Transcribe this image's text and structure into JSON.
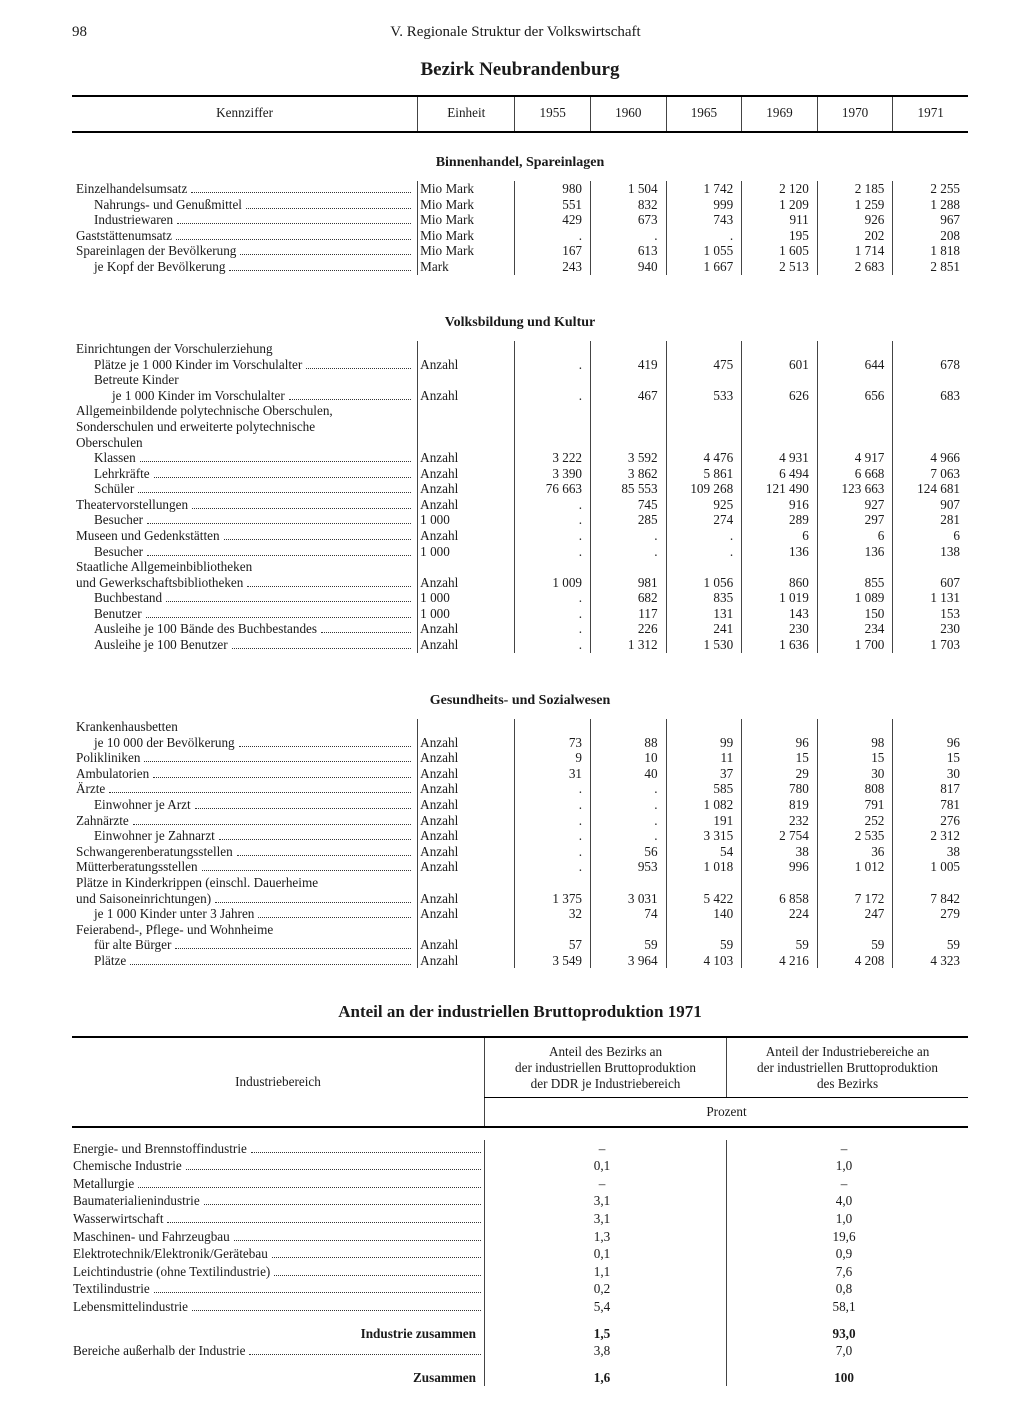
{
  "folio": "98",
  "chapter": "V. Regionale Struktur der Volkswirtschaft",
  "title": "Bezirk Neubrandenburg",
  "head": {
    "kennziffer": "Kennziffer",
    "einheit": "Einheit",
    "years": [
      "1955",
      "1960",
      "1965",
      "1969",
      "1970",
      "1971"
    ]
  },
  "sections": [
    {
      "caption": "Binnenhandel, Spareinlagen",
      "rows": [
        {
          "lbl": "Einzelhandelsumsatz",
          "ind": 0,
          "unit": "Mio Mark",
          "v": [
            "980",
            "1 504",
            "1 742",
            "2 120",
            "2 185",
            "2 255"
          ]
        },
        {
          "lbl": "Nahrungs- und Genußmittel",
          "ind": 1,
          "unit": "Mio Mark",
          "v": [
            "551",
            "832",
            "999",
            "1 209",
            "1 259",
            "1 288"
          ]
        },
        {
          "lbl": "Industriewaren",
          "ind": 1,
          "unit": "Mio Mark",
          "v": [
            "429",
            "673",
            "743",
            "911",
            "926",
            "967"
          ]
        },
        {
          "lbl": "Gaststättenumsatz",
          "ind": 0,
          "unit": "Mio Mark",
          "v": [
            ".",
            ".",
            ".",
            "195",
            "202",
            "208"
          ]
        },
        {
          "lbl": "Spareinlagen der Bevölkerung",
          "ind": 0,
          "unit": "Mio Mark",
          "v": [
            "167",
            "613",
            "1 055",
            "1 605",
            "1 714",
            "1 818"
          ]
        },
        {
          "lbl": "je Kopf der Bevölkerung",
          "ind": 1,
          "unit": "Mark",
          "v": [
            "243",
            "940",
            "1 667",
            "2 513",
            "2 683",
            "2 851"
          ]
        }
      ]
    },
    {
      "caption": "Volksbildung und Kultur",
      "rows": [
        {
          "lbl": "Einrichtungen der Vorschulerziehung",
          "ind": 0,
          "noDots": true,
          "unit": "",
          "v": [
            "",
            "",
            "",
            "",
            "",
            ""
          ]
        },
        {
          "lbl": "Plätze je 1 000 Kinder im Vorschulalter",
          "ind": 1,
          "unit": "Anzahl",
          "v": [
            ".",
            "419",
            "475",
            "601",
            "644",
            "678"
          ]
        },
        {
          "lbl": "Betreute Kinder",
          "ind": 1,
          "noDots": true,
          "unit": "",
          "v": [
            "",
            "",
            "",
            "",
            "",
            ""
          ]
        },
        {
          "lbl": "je 1 000 Kinder im Vorschulalter",
          "ind": 2,
          "unit": "Anzahl",
          "v": [
            ".",
            "467",
            "533",
            "626",
            "656",
            "683"
          ]
        },
        {
          "lbl": "Allgemeinbildende polytechnische Oberschulen,",
          "ind": 0,
          "noDots": true,
          "unit": "",
          "v": [
            "",
            "",
            "",
            "",
            "",
            ""
          ]
        },
        {
          "lbl": "Sonderschulen und erweiterte polytechnische",
          "ind": 0,
          "noDots": true,
          "unit": "",
          "v": [
            "",
            "",
            "",
            "",
            "",
            ""
          ]
        },
        {
          "lbl": "Oberschulen",
          "ind": 0,
          "noDots": true,
          "unit": "",
          "v": [
            "",
            "",
            "",
            "",
            "",
            ""
          ]
        },
        {
          "lbl": "Klassen",
          "ind": 1,
          "unit": "Anzahl",
          "v": [
            "3 222",
            "3 592",
            "4 476",
            "4 931",
            "4 917",
            "4 966"
          ]
        },
        {
          "lbl": "Lehrkräfte",
          "ind": 1,
          "unit": "Anzahl",
          "v": [
            "3 390",
            "3 862",
            "5 861",
            "6 494",
            "6 668",
            "7 063"
          ]
        },
        {
          "lbl": "Schüler",
          "ind": 1,
          "unit": "Anzahl",
          "v": [
            "76 663",
            "85 553",
            "109 268",
            "121 490",
            "123 663",
            "124 681"
          ]
        },
        {
          "lbl": "Theatervorstellungen",
          "ind": 0,
          "unit": "Anzahl",
          "v": [
            ".",
            "745",
            "925",
            "916",
            "927",
            "907"
          ]
        },
        {
          "lbl": "Besucher",
          "ind": 1,
          "unit": "1 000",
          "v": [
            ".",
            "285",
            "274",
            "289",
            "297",
            "281"
          ]
        },
        {
          "lbl": "Museen und Gedenkstätten",
          "ind": 0,
          "unit": "Anzahl",
          "v": [
            ".",
            ".",
            ".",
            "6",
            "6",
            "6"
          ]
        },
        {
          "lbl": "Besucher",
          "ind": 1,
          "unit": "1 000",
          "v": [
            ".",
            ".",
            ".",
            "136",
            "136",
            "138"
          ]
        },
        {
          "lbl": "Staatliche Allgemeinbibliotheken",
          "ind": 0,
          "noDots": true,
          "unit": "",
          "v": [
            "",
            "",
            "",
            "",
            "",
            ""
          ]
        },
        {
          "lbl": "und Gewerkschaftsbibliotheken",
          "ind": 0,
          "unit": "Anzahl",
          "v": [
            "1 009",
            "981",
            "1 056",
            "860",
            "855",
            "607"
          ]
        },
        {
          "lbl": "Buchbestand",
          "ind": 1,
          "unit": "1 000",
          "v": [
            ".",
            "682",
            "835",
            "1 019",
            "1 089",
            "1 131"
          ]
        },
        {
          "lbl": "Benutzer",
          "ind": 1,
          "unit": "1 000",
          "v": [
            ".",
            "117",
            "131",
            "143",
            "150",
            "153"
          ]
        },
        {
          "lbl": "Ausleihe je 100 Bände des Buchbestandes",
          "ind": 1,
          "unit": "Anzahl",
          "v": [
            ".",
            "226",
            "241",
            "230",
            "234",
            "230"
          ]
        },
        {
          "lbl": "Ausleihe je 100 Benutzer",
          "ind": 1,
          "unit": "Anzahl",
          "v": [
            ".",
            "1 312",
            "1 530",
            "1 636",
            "1 700",
            "1 703"
          ]
        }
      ]
    },
    {
      "caption": "Gesundheits- und Sozialwesen",
      "rows": [
        {
          "lbl": "Krankenhausbetten",
          "ind": 0,
          "noDots": true,
          "unit": "",
          "v": [
            "",
            "",
            "",
            "",
            "",
            ""
          ]
        },
        {
          "lbl": "je 10 000 der Bevölkerung",
          "ind": 1,
          "unit": "Anzahl",
          "v": [
            "73",
            "88",
            "99",
            "96",
            "98",
            "96"
          ]
        },
        {
          "lbl": "Polikliniken",
          "ind": 0,
          "unit": "Anzahl",
          "v": [
            "9",
            "10",
            "11",
            "15",
            "15",
            "15"
          ]
        },
        {
          "lbl": "Ambulatorien",
          "ind": 0,
          "unit": "Anzahl",
          "v": [
            "31",
            "40",
            "37",
            "29",
            "30",
            "30"
          ]
        },
        {
          "lbl": "Ärzte",
          "ind": 0,
          "unit": "Anzahl",
          "v": [
            ".",
            ".",
            "585",
            "780",
            "808",
            "817"
          ]
        },
        {
          "lbl": "Einwohner je Arzt",
          "ind": 1,
          "unit": "Anzahl",
          "v": [
            ".",
            ".",
            "1 082",
            "819",
            "791",
            "781"
          ]
        },
        {
          "lbl": "Zahnärzte",
          "ind": 0,
          "unit": "Anzahl",
          "v": [
            ".",
            ".",
            "191",
            "232",
            "252",
            "276"
          ]
        },
        {
          "lbl": "Einwohner je Zahnarzt",
          "ind": 1,
          "unit": "Anzahl",
          "v": [
            ".",
            ".",
            "3 315",
            "2 754",
            "2 535",
            "2 312"
          ]
        },
        {
          "lbl": "Schwangerenberatungsstellen",
          "ind": 0,
          "unit": "Anzahl",
          "v": [
            ".",
            "56",
            "54",
            "38",
            "36",
            "38"
          ]
        },
        {
          "lbl": "Mütterberatungsstellen",
          "ind": 0,
          "unit": "Anzahl",
          "v": [
            ".",
            "953",
            "1 018",
            "996",
            "1 012",
            "1 005"
          ]
        },
        {
          "lbl": "Plätze in Kinderkrippen (einschl. Dauerheime",
          "ind": 0,
          "noDots": true,
          "unit": "",
          "v": [
            "",
            "",
            "",
            "",
            "",
            ""
          ]
        },
        {
          "lbl": "und Saisoneinrichtungen)",
          "ind": 0,
          "unit": "Anzahl",
          "v": [
            "1 375",
            "3 031",
            "5 422",
            "6 858",
            "7 172",
            "7 842"
          ]
        },
        {
          "lbl": "je 1 000 Kinder unter 3 Jahren",
          "ind": 1,
          "unit": "Anzahl",
          "v": [
            "32",
            "74",
            "140",
            "224",
            "247",
            "279"
          ]
        },
        {
          "lbl": "Feierabend-, Pflege- und Wohnheime",
          "ind": 0,
          "noDots": true,
          "unit": "",
          "v": [
            "",
            "",
            "",
            "",
            "",
            ""
          ]
        },
        {
          "lbl": "für alte Bürger",
          "ind": 1,
          "unit": "Anzahl",
          "v": [
            "57",
            "59",
            "59",
            "59",
            "59",
            "59"
          ]
        },
        {
          "lbl": "Plätze",
          "ind": 1,
          "unit": "Anzahl",
          "v": [
            "3 549",
            "3 964",
            "4 103",
            "4 216",
            "4 208",
            "4 323"
          ]
        }
      ]
    }
  ],
  "subTitle": "Anteil an der industriellen Bruttoproduktion 1971",
  "shareHead": {
    "ind": "Industriebereich",
    "c1": "Anteil des Bezirks an\nder industriellen Bruttoproduktion\nder DDR je Industriebereich",
    "c2": "Anteil der Industriebereiche an\nder industriellen Bruttoproduktion\ndes Bezirks",
    "unit": "Prozent"
  },
  "shareRows": [
    {
      "lbl": "Energie- und Brennstoffindustrie",
      "a": "–",
      "b": "–"
    },
    {
      "lbl": "Chemische Industrie",
      "a": "0,1",
      "b": "1,0"
    },
    {
      "lbl": "Metallurgie",
      "a": "–",
      "b": "–"
    },
    {
      "lbl": "Baumaterialienindustrie",
      "a": "3,1",
      "b": "4,0"
    },
    {
      "lbl": "Wasserwirtschaft",
      "a": "3,1",
      "b": "1,0"
    },
    {
      "lbl": "Maschinen- und Fahrzeugbau",
      "a": "1,3",
      "b": "19,6"
    },
    {
      "lbl": "Elektrotechnik/Elektronik/Gerätebau",
      "a": "0,1",
      "b": "0,9"
    },
    {
      "lbl": "Leichtindustrie (ohne Textilindustrie)",
      "a": "1,1",
      "b": "7,6"
    },
    {
      "lbl": "Textilindustrie",
      "a": "0,2",
      "b": "0,8"
    },
    {
      "lbl": "Lebensmittelindustrie",
      "a": "5,4",
      "b": "58,1"
    }
  ],
  "shareTotals": [
    {
      "lbl": "Industrie zusammen",
      "a": "1,5",
      "b": "93,0",
      "bold": true
    },
    {
      "lbl": "Bereiche außerhalb der Industrie",
      "a": "3,8",
      "b": "7,0",
      "bold": false,
      "leftAlign": true
    },
    {
      "lbl": "Zusammen",
      "a": "1,6",
      "b": "100",
      "bold": true
    }
  ]
}
